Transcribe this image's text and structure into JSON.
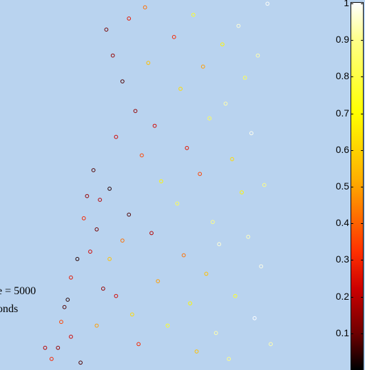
{
  "chart_data": {
    "type": "scatter",
    "marker": "open-circle",
    "colormap": "hot",
    "colormap_colors": [
      "#000000",
      "#700000",
      "#cc0000",
      "#ff3000",
      "#ffb000",
      "#ffff00",
      "#ffff8a",
      "#ffffff"
    ],
    "background": "#b9d3ef",
    "annotation": [
      "e = 5000",
      "onds"
    ],
    "colorbar": {
      "range": [
        0,
        1
      ],
      "ticks": [
        0.1,
        0.2,
        0.3,
        0.4,
        0.5,
        0.6,
        0.7,
        0.8,
        0.9,
        1
      ],
      "tick_labels": [
        "0.1",
        "0.2",
        "0.3",
        "0.4",
        "0.5",
        "0.6",
        "0.7",
        "0.8",
        "0.9",
        "1"
      ]
    },
    "points": [
      [
        0.33,
        0.92,
        0.15
      ],
      [
        0.35,
        0.85,
        0.2
      ],
      [
        0.38,
        0.78,
        0.1
      ],
      [
        0.36,
        0.63,
        0.3
      ],
      [
        0.34,
        0.49,
        0.05
      ],
      [
        0.31,
        0.46,
        0.25
      ],
      [
        0.29,
        0.54,
        0.1
      ],
      [
        0.27,
        0.47,
        0.2
      ],
      [
        0.26,
        0.41,
        0.4
      ],
      [
        0.3,
        0.38,
        0.15
      ],
      [
        0.28,
        0.32,
        0.3
      ],
      [
        0.24,
        0.3,
        0.05
      ],
      [
        0.22,
        0.25,
        0.35
      ],
      [
        0.2,
        0.17,
        0.1
      ],
      [
        0.19,
        0.13,
        0.45
      ],
      [
        0.18,
        0.06,
        0.2
      ],
      [
        0.22,
        0.09,
        0.3
      ],
      [
        0.25,
        0.02,
        0.1
      ],
      [
        0.16,
        0.03,
        0.4
      ],
      [
        0.14,
        0.06,
        0.25
      ],
      [
        0.21,
        0.19,
        0.05
      ],
      [
        0.3,
        0.12,
        0.55
      ],
      [
        0.32,
        0.22,
        0.2
      ],
      [
        0.34,
        0.3,
        0.6
      ],
      [
        0.4,
        0.95,
        0.35
      ],
      [
        0.42,
        0.7,
        0.2
      ],
      [
        0.44,
        0.58,
        0.45
      ],
      [
        0.4,
        0.42,
        0.1
      ],
      [
        0.38,
        0.35,
        0.5
      ],
      [
        0.36,
        0.2,
        0.3
      ],
      [
        0.41,
        0.15,
        0.65
      ],
      [
        0.43,
        0.07,
        0.4
      ],
      [
        0.46,
        0.83,
        0.6
      ],
      [
        0.48,
        0.66,
        0.3
      ],
      [
        0.5,
        0.51,
        0.7
      ],
      [
        0.47,
        0.37,
        0.25
      ],
      [
        0.49,
        0.24,
        0.55
      ],
      [
        0.52,
        0.12,
        0.75
      ],
      [
        0.45,
        0.98,
        0.5
      ],
      [
        0.54,
        0.9,
        0.4
      ],
      [
        0.56,
        0.76,
        0.65
      ],
      [
        0.58,
        0.6,
        0.35
      ],
      [
        0.55,
        0.45,
        0.8
      ],
      [
        0.57,
        0.31,
        0.5
      ],
      [
        0.59,
        0.18,
        0.7
      ],
      [
        0.61,
        0.05,
        0.6
      ],
      [
        0.6,
        0.96,
        0.75
      ],
      [
        0.63,
        0.82,
        0.55
      ],
      [
        0.65,
        0.68,
        0.8
      ],
      [
        0.62,
        0.53,
        0.45
      ],
      [
        0.66,
        0.4,
        0.85
      ],
      [
        0.64,
        0.26,
        0.6
      ],
      [
        0.67,
        0.1,
        0.9
      ],
      [
        0.69,
        0.88,
        0.7
      ],
      [
        0.7,
        0.72,
        0.9
      ],
      [
        0.72,
        0.57,
        0.65
      ],
      [
        0.68,
        0.34,
        0.95
      ],
      [
        0.73,
        0.2,
        0.75
      ],
      [
        0.71,
        0.03,
        0.85
      ],
      [
        0.74,
        0.93,
        0.95
      ],
      [
        0.76,
        0.79,
        0.8
      ],
      [
        0.78,
        0.64,
        0.98
      ],
      [
        0.75,
        0.48,
        0.7
      ],
      [
        0.77,
        0.36,
        0.92
      ],
      [
        0.79,
        0.14,
        1.0
      ],
      [
        0.8,
        0.85,
        0.9
      ],
      [
        0.82,
        0.5,
        0.85
      ],
      [
        0.81,
        0.28,
        0.97
      ],
      [
        0.84,
        0.07,
        0.9
      ],
      [
        0.83,
        0.99,
        0.99
      ]
    ]
  }
}
